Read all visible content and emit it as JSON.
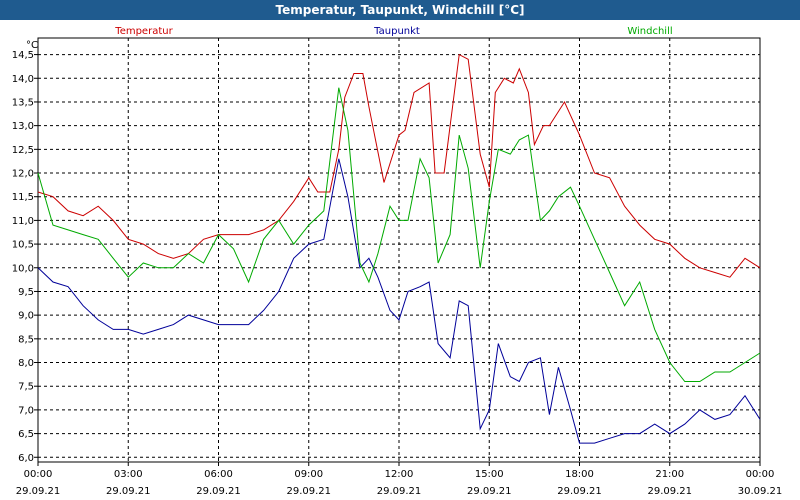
{
  "window": {
    "title": "Temperatur, Taupunkt, Windchill [°C]"
  },
  "chart_data": {
    "type": "line",
    "unit_label": "°C",
    "ylim": [
      5.9,
      14.85
    ],
    "y_ticks": [
      6.0,
      6.5,
      7.0,
      7.5,
      8.0,
      8.5,
      9.0,
      9.5,
      10.0,
      10.5,
      11.0,
      11.5,
      12.0,
      12.5,
      13.0,
      13.5,
      14.0,
      14.5
    ],
    "y_tick_labels": [
      "6,0",
      "6,5",
      "7,0",
      "7,5",
      "8,0",
      "8,5",
      "9,0",
      "9,5",
      "10,0",
      "10,5",
      "11,0",
      "11,5",
      "12,0",
      "12,5",
      "13,0",
      "13,5",
      "14,0",
      "14,5"
    ],
    "xlim": [
      0,
      24
    ],
    "x_ticks": [
      {
        "time": "00:00",
        "date": "29.09.21"
      },
      {
        "time": "03:00",
        "date": "29.09.21"
      },
      {
        "time": "06:00",
        "date": "29.09.21"
      },
      {
        "time": "09:00",
        "date": "29.09.21"
      },
      {
        "time": "12:00",
        "date": "29.09.21"
      },
      {
        "time": "15:00",
        "date": "29.09.21"
      },
      {
        "time": "18:00",
        "date": "29.09.21"
      },
      {
        "time": "21:00",
        "date": "29.09.21"
      },
      {
        "time": "00:00",
        "date": "30.09.21"
      }
    ],
    "grid": true,
    "series": [
      {
        "name": "Temperatur",
        "color": "#cc0000",
        "x": [
          0,
          0.5,
          1,
          1.5,
          2,
          2.5,
          3,
          3.5,
          4,
          4.5,
          5,
          5.5,
          6,
          6.5,
          7,
          7.5,
          8,
          8.5,
          9,
          9.3,
          9.7,
          10,
          10.2,
          10.5,
          10.8,
          11,
          11.5,
          12,
          12.2,
          12.5,
          13,
          13.2,
          13.5,
          14,
          14.3,
          14.7,
          15,
          15.2,
          15.5,
          15.8,
          16,
          16.3,
          16.5,
          16.8,
          17,
          17.5,
          18,
          18.5,
          19,
          19.5,
          20,
          20.5,
          21,
          21.5,
          22,
          22.5,
          23,
          23.5,
          24
        ],
        "y": [
          11.6,
          11.5,
          11.2,
          11.1,
          11.3,
          11.0,
          10.6,
          10.5,
          10.3,
          10.2,
          10.3,
          10.6,
          10.7,
          10.7,
          10.7,
          10.8,
          11.0,
          11.4,
          11.9,
          11.6,
          11.6,
          12.5,
          13.6,
          14.1,
          14.1,
          13.4,
          11.8,
          12.8,
          12.9,
          13.7,
          13.9,
          12.0,
          12.0,
          14.5,
          14.4,
          12.4,
          11.7,
          13.7,
          14.0,
          13.9,
          14.2,
          13.7,
          12.6,
          13.0,
          13.0,
          13.5,
          12.8,
          12.0,
          11.9,
          11.3,
          10.9,
          10.6,
          10.5,
          10.2,
          10.0,
          9.9,
          9.8,
          10.2,
          10.0
        ]
      },
      {
        "name": "Taupunkt",
        "color": "#000099",
        "x": [
          0,
          0.5,
          1,
          1.5,
          2,
          2.5,
          3,
          3.5,
          4,
          4.5,
          5,
          5.5,
          6,
          6.5,
          7,
          7.5,
          8,
          8.5,
          9,
          9.5,
          10,
          10.3,
          10.7,
          11,
          11.3,
          11.7,
          12,
          12.3,
          12.7,
          13,
          13.3,
          13.7,
          14,
          14.3,
          14.7,
          15,
          15.3,
          15.7,
          16,
          16.3,
          16.7,
          17,
          17.3,
          17.7,
          18,
          18.5,
          19,
          19.5,
          20,
          20.5,
          21,
          21.5,
          22,
          22.5,
          23,
          23.5,
          24
        ],
        "y": [
          10.0,
          9.7,
          9.6,
          9.2,
          8.9,
          8.7,
          8.7,
          8.6,
          8.7,
          8.8,
          9.0,
          8.9,
          8.8,
          8.8,
          8.8,
          9.1,
          9.5,
          10.2,
          10.5,
          10.6,
          12.3,
          11.5,
          10.0,
          10.2,
          9.8,
          9.1,
          8.9,
          9.5,
          9.6,
          9.7,
          8.4,
          8.1,
          9.3,
          9.2,
          6.6,
          7.0,
          8.4,
          7.7,
          7.6,
          8.0,
          8.1,
          6.9,
          7.9,
          7.0,
          6.3,
          6.3,
          6.4,
          6.5,
          6.5,
          6.7,
          6.5,
          6.7,
          7.0,
          6.8,
          6.9,
          7.3,
          6.8
        ]
      },
      {
        "name": "Windchill",
        "color": "#00aa00",
        "x": [
          0,
          0.5,
          1,
          1.5,
          2,
          2.5,
          3,
          3.5,
          4,
          4.5,
          5,
          5.5,
          6,
          6.5,
          7,
          7.5,
          8,
          8.5,
          9,
          9.5,
          10,
          10.3,
          10.7,
          11,
          11.3,
          11.7,
          12,
          12.3,
          12.7,
          13,
          13.3,
          13.7,
          14,
          14.3,
          14.7,
          15,
          15.3,
          15.7,
          16,
          16.3,
          16.7,
          17,
          17.3,
          17.7,
          18,
          18.5,
          19,
          19.5,
          20,
          20.5,
          21,
          21.5,
          22,
          22.5,
          23,
          23.5,
          24
        ],
        "y": [
          12.0,
          10.9,
          10.8,
          10.7,
          10.6,
          10.2,
          9.8,
          10.1,
          10.0,
          10.0,
          10.3,
          10.1,
          10.7,
          10.4,
          9.7,
          10.6,
          11.0,
          10.5,
          10.9,
          11.2,
          13.8,
          12.9,
          10.1,
          9.7,
          10.3,
          11.3,
          11.0,
          11.0,
          12.3,
          11.9,
          10.1,
          10.7,
          12.8,
          12.1,
          10.0,
          11.4,
          12.5,
          12.4,
          12.7,
          12.8,
          11.0,
          11.2,
          11.5,
          11.7,
          11.3,
          10.6,
          9.9,
          9.2,
          9.7,
          8.7,
          8.0,
          7.6,
          7.6,
          7.8,
          7.8,
          8.0,
          8.2
        ]
      }
    ]
  }
}
